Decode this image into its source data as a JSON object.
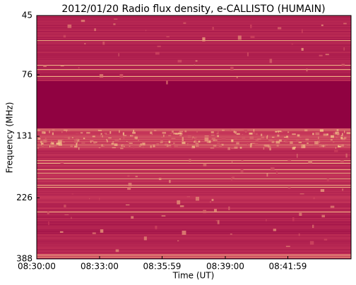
{
  "chart_data": {
    "type": "spectrogram",
    "title": "2012/01/20  Radio flux density, e-CALLISTO (HUMAIN)",
    "x_label": "Time (UT)",
    "y_label": "Frequency (MHz)",
    "xlim": [
      "08:30:00",
      "08:45:00"
    ],
    "xticks": [
      "08:30:00",
      "08:33:00",
      "08:35:59",
      "08:39:00",
      "08:41:59"
    ],
    "ylim": [
      45,
      388
    ],
    "yticks": [
      45,
      76,
      131,
      226,
      388
    ],
    "y_log": true,
    "y_inverted": true
  }
}
